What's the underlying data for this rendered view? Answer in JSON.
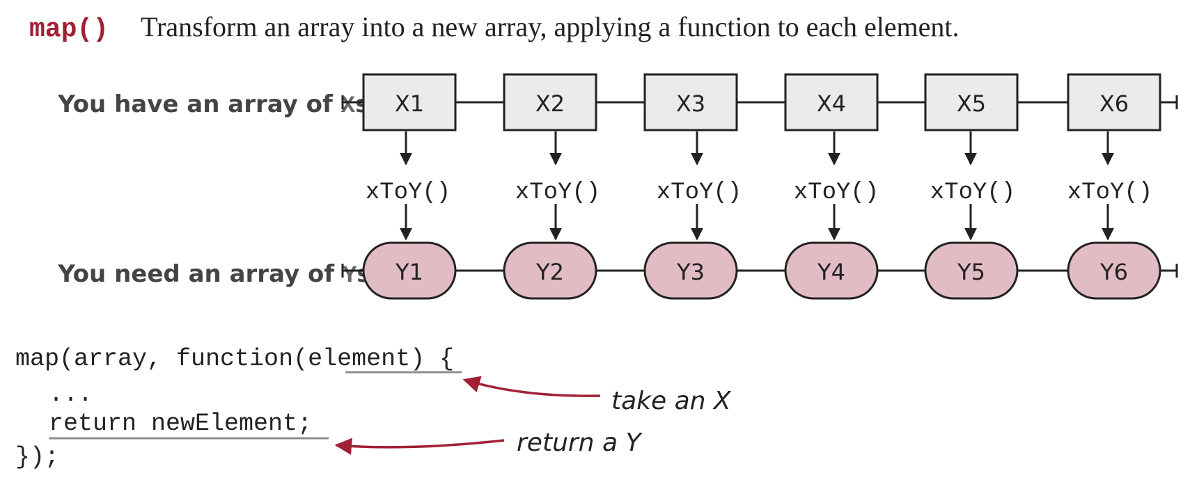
{
  "header": {
    "function_name": "map()",
    "description": "Transform an array into a new array, applying a function to each element."
  },
  "rows": {
    "input_label_prefix": "You have an array of ",
    "input_label_code": "X",
    "input_label_suffix": "s",
    "output_label_prefix": "You need an array of ",
    "output_label_code": "Y",
    "output_label_suffix": "s"
  },
  "elements": {
    "inputs": [
      "X1",
      "X2",
      "X3",
      "X4",
      "X5",
      "X6"
    ],
    "functions": [
      "xToY()",
      "xToY()",
      "xToY()",
      "xToY()",
      "xToY()",
      "xToY()"
    ],
    "outputs": [
      "Y1",
      "Y2",
      "Y3",
      "Y4",
      "Y5",
      "Y6"
    ]
  },
  "code": {
    "line1_prefix": "map(array, function(",
    "line1_param": "element",
    "line1_suffix": ") {",
    "line2": "...",
    "line3_return": "return newElement",
    "line3_suffix": ";",
    "line4": "});"
  },
  "annotations": {
    "take": "take an X",
    "return": "return a Y"
  },
  "colors": {
    "accent_red": "#a31f34",
    "box_fill": "#ebebeb",
    "pill_fill": "#e2bcc4",
    "stroke": "#222222",
    "label_text": "#444444",
    "underline": "#8c8c8c"
  }
}
